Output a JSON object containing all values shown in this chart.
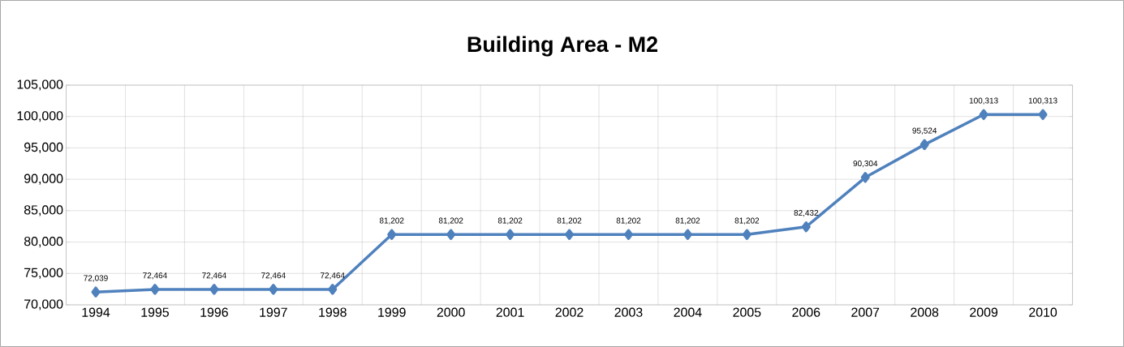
{
  "chart_data": {
    "type": "line",
    "title": "Building Area - M2",
    "categories": [
      "1994",
      "1995",
      "1996",
      "1997",
      "1998",
      "1999",
      "2000",
      "2001",
      "2002",
      "2003",
      "2004",
      "2005",
      "2006",
      "2007",
      "2008",
      "2009",
      "2010"
    ],
    "values": [
      72039,
      72464,
      72464,
      72464,
      72464,
      81202,
      81202,
      81202,
      81202,
      81202,
      81202,
      81202,
      82432,
      90304,
      95524,
      100313,
      100313
    ],
    "value_labels": [
      "72,039",
      "72,464",
      "72,464",
      "72,464",
      "72,464",
      "81,202",
      "81,202",
      "81,202",
      "81,202",
      "81,202",
      "81,202",
      "81,202",
      "82,432",
      "90,304",
      "95,524",
      "100,313",
      "100,313"
    ],
    "color": "#4f81bd",
    "ylim": [
      70000,
      105000
    ],
    "yticks": [
      {
        "value": 70000,
        "label": "70,000"
      },
      {
        "value": 75000,
        "label": "75,000"
      },
      {
        "value": 80000,
        "label": "80,000"
      },
      {
        "value": 85000,
        "label": "85,000"
      },
      {
        "value": 90000,
        "label": "90,000"
      },
      {
        "value": 95000,
        "label": "95,000"
      },
      {
        "value": 100000,
        "label": "100,000"
      },
      {
        "value": 105000,
        "label": "105,000"
      }
    ],
    "grid": true,
    "marker": "diamond",
    "line_style": "solid"
  }
}
